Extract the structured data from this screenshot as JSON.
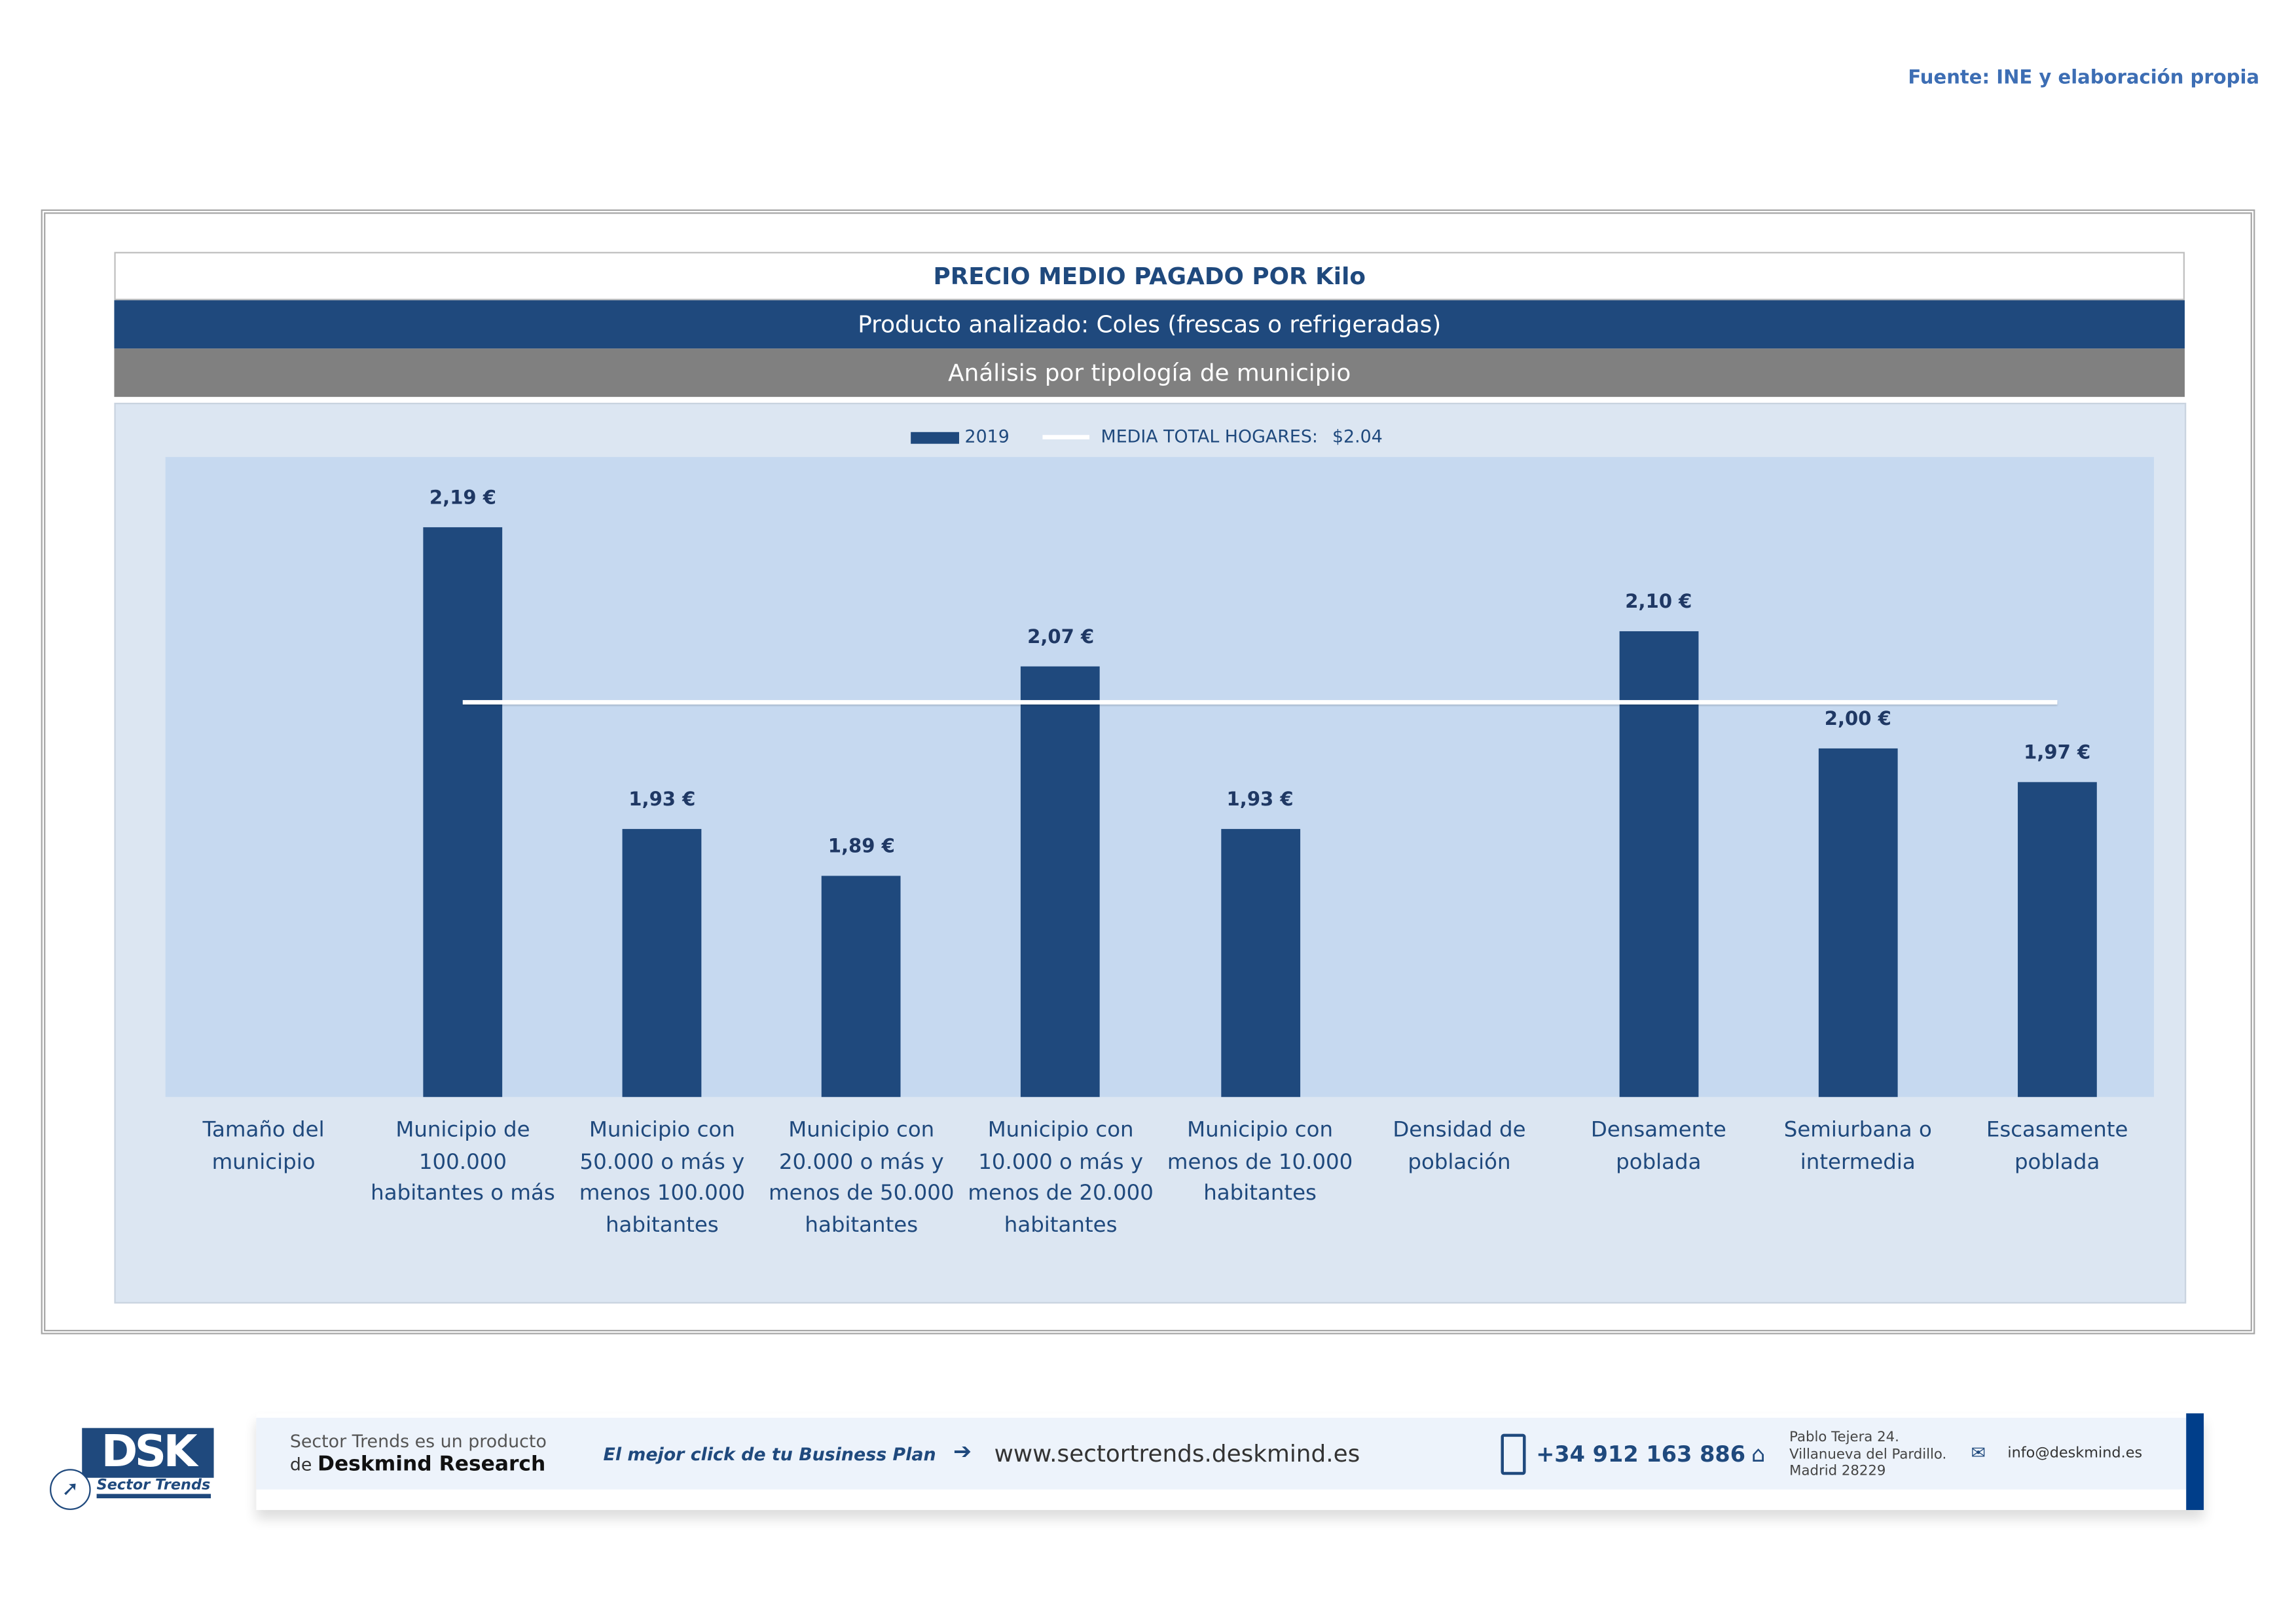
{
  "source_note": "Fuente: INE y elaboración propia",
  "header": {
    "title": "PRECIO MEDIO PAGADO POR Kilo",
    "product": "Producto analizado: Coles (frescas o refrigeradas)",
    "analysis": "Análisis por tipología de municipio"
  },
  "chart_data": {
    "type": "bar",
    "categories": [
      "Tamaño del municipio",
      "Municipio de 100.000 habitantes o más",
      "Municipio con 50.000 o más y menos 100.000 habitantes",
      "Municipio con 20.000 o más y menos de 50.000 habitantes",
      "Municipio con 10.000 o más y menos de 20.000 habitantes",
      "Municipio con menos de 10.000 habitantes",
      "Densidad de población",
      "Densamente poblada",
      "Semiurbana o intermedia",
      "Escasamente poblada"
    ],
    "series": [
      {
        "name": "2019",
        "values": [
          null,
          2.19,
          1.93,
          1.89,
          2.07,
          1.93,
          null,
          2.1,
          2.0,
          1.97
        ],
        "labels": [
          "",
          "2,19 €",
          "1,93 €",
          "1,89 €",
          "2,07 €",
          "1,93 €",
          "",
          "2,10 €",
          "2,00 €",
          "1,97 €"
        ]
      }
    ],
    "reference_line": {
      "name": "MEDIA TOTAL  HOGARES:",
      "value_label": "$2.04",
      "value": 2.04
    },
    "ylim": [
      1.7,
      2.25
    ],
    "legend_position": "top-center",
    "grid": false,
    "colors": {
      "bar": "#1f497d",
      "plot_bg": "#c6d9f0",
      "line": "#ffffff"
    }
  },
  "footer": {
    "logo_text": "DSK",
    "logo_sub": "Sector Trends",
    "product_line1": "Sector Trends es un producto",
    "product_line2_prefix": "de",
    "product_line2_brand": "Deskmind Research",
    "slogan": "El mejor click de tu Business Plan",
    "website": "www.sectortrends.deskmind.es",
    "phone": "+34 912 163 886",
    "address": [
      "Pablo Tejera 24.",
      "Villanueva del Pardillo.",
      "Madrid 28229"
    ],
    "email": "info@deskmind.es"
  }
}
